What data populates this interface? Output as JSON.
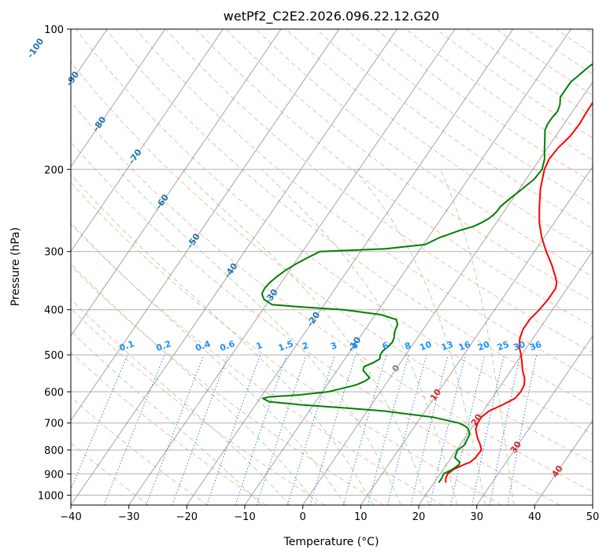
{
  "chart_data": {
    "type": "line",
    "subtype": "skew-t log-p diagram",
    "title": "wetPf2_C2E2.2026.096.22.12.G20",
    "xlabel": "Temperature (°C)",
    "ylabel": "Pressure (hPa)",
    "xlim": [
      -40,
      50
    ],
    "ylim": [
      1050,
      100
    ],
    "y_scale": "log",
    "grid": true,
    "x_ticks": [
      "−40",
      "−30",
      "−20",
      "−10",
      "0",
      "10",
      "20",
      "30",
      "40",
      "50"
    ],
    "y_ticks": [
      "100",
      "200",
      "300",
      "400",
      "500",
      "600",
      "700",
      "800",
      "900",
      "1000"
    ],
    "colors": {
      "temperature": "#ff0000",
      "dewpoint": "#008000",
      "isotherm": "#808080",
      "dry_adiabat": "#f4a582",
      "moist_adiabat": "#8fce8f",
      "mixing_ratio": "#1f77d4",
      "label_blue": "#1f77b4",
      "label_red": "#d62728",
      "label_mix": "#1e90ff"
    },
    "series": [
      {
        "key": "temperature",
        "pressure": [
          940,
          920,
          900,
          880,
          860,
          850,
          830,
          800,
          780,
          760,
          740,
          720,
          700,
          680,
          660,
          640,
          620,
          600,
          580,
          560,
          540,
          520,
          500,
          480,
          460,
          440,
          420,
          400,
          380,
          360,
          350,
          340,
          320,
          300,
          280,
          260,
          240,
          220,
          200,
          190,
          180,
          170,
          160,
          150,
          140,
          130,
          120,
          110,
          100
        ],
        "temperature": [
          22,
          21.5,
          21.3,
          21.8,
          23.0,
          23.8,
          24.2,
          24.3,
          23.5,
          22.5,
          21.6,
          20.8,
          20.5,
          20.4,
          21.0,
          22.6,
          24.0,
          24.2,
          24.0,
          23.2,
          22.0,
          21.0,
          19.9,
          18.6,
          17.7,
          17.2,
          17.2,
          17.7,
          18.0,
          18.0,
          17.5,
          16.6,
          14.5,
          12.0,
          9.6,
          7.4,
          5.5,
          3.6,
          2.0,
          1.6,
          1.8,
          2.5,
          2.7,
          2.5,
          2.4,
          2.2,
          1.7,
          0.8,
          0
        ]
      },
      {
        "key": "dewpoint",
        "pressure": [
          940,
          920,
          900,
          880,
          860,
          850,
          830,
          800,
          780,
          760,
          740,
          720,
          710,
          700,
          680,
          660,
          650,
          640,
          630,
          620,
          615,
          610,
          600,
          590,
          580,
          570,
          560,
          550,
          540,
          530,
          520,
          510,
          500,
          490,
          480,
          470,
          460,
          450,
          440,
          430,
          420,
          410,
          400,
          395,
          390,
          380,
          370,
          360,
          350,
          340,
          330,
          320,
          310,
          300,
          296,
          290,
          280,
          270,
          265,
          260,
          255,
          250,
          245,
          240,
          230,
          220,
          210,
          200,
          190,
          180,
          170,
          165,
          160,
          155,
          150,
          145,
          140,
          130,
          120,
          110,
          100
        ],
        "temperature": [
          20.8,
          20.8,
          20.6,
          21.6,
          22.2,
          22.0,
          20.6,
          20.2,
          20.8,
          20.6,
          20.4,
          19.5,
          18.6,
          17.2,
          12.0,
          3.0,
          -4.0,
          -12.0,
          -18.0,
          -19.5,
          -18.5,
          -14.0,
          -9.0,
          -7.0,
          -5.0,
          -4.0,
          -3.5,
          -4.5,
          -5.5,
          -5.8,
          -4.7,
          -4.0,
          -4.4,
          -4.4,
          -4.0,
          -3.8,
          -4.0,
          -4.5,
          -4.8,
          -5.0,
          -5.8,
          -9.0,
          -16.0,
          -23.0,
          -29.0,
          -31.0,
          -32.0,
          -32.2,
          -32.0,
          -31.5,
          -30.8,
          -29.8,
          -28.5,
          -27.0,
          -16.0,
          -9.7,
          -8.0,
          -5.3,
          -3.5,
          -2.5,
          -1.8,
          -1.4,
          -1.2,
          -1.2,
          -0.4,
          0.5,
          1.4,
          1.6,
          0.8,
          -0.5,
          -1.8,
          -2.5,
          -2.8,
          -2.8,
          -2.6,
          -3.0,
          -3.8,
          -3.8,
          -2.4,
          -0.2,
          0
        ]
      }
    ],
    "isotherm_labels": [
      {
        "text": "-100",
        "t": -100,
        "p": 110
      },
      {
        "text": "-90",
        "t": -90,
        "p": 128
      },
      {
        "text": "-80",
        "t": -80,
        "p": 160
      },
      {
        "text": "-70",
        "t": -70,
        "p": 188
      },
      {
        "text": "-60",
        "t": -60,
        "p": 235
      },
      {
        "text": "-50",
        "t": -50,
        "p": 285
      },
      {
        "text": "-40",
        "t": -40,
        "p": 330
      },
      {
        "text": "-30",
        "t": -30,
        "p": 375
      },
      {
        "text": "-20",
        "t": -20,
        "p": 420
      },
      {
        "text": "-10",
        "t": -10,
        "p": 475
      },
      {
        "text": "0",
        "t": 0,
        "p": 535
      },
      {
        "text": "10",
        "t": 10,
        "p": 610
      },
      {
        "text": "20",
        "t": 20,
        "p": 690
      },
      {
        "text": "30",
        "t": 30,
        "p": 790
      },
      {
        "text": "40",
        "t": 40,
        "p": 890
      }
    ],
    "mixing_ratio_labels": [
      "0.1",
      "0.2",
      "0.4",
      "0.6",
      "1",
      "1.5",
      "2",
      "3",
      "4",
      "6",
      "8",
      "10",
      "13",
      "16",
      "20",
      "25",
      "30",
      "36"
    ],
    "mixing_ratio_values": [
      0.1,
      0.2,
      0.4,
      0.6,
      1,
      1.5,
      2,
      3,
      4,
      6,
      8,
      10,
      13,
      16,
      20,
      25,
      30,
      36
    ],
    "mixing_ratio_label_pressure": 500,
    "dry_adiabats_theta_c": [
      -30,
      -20,
      -10,
      0,
      10,
      20,
      30,
      40,
      50,
      60,
      70,
      80,
      90,
      100,
      110,
      120,
      130,
      140,
      150,
      160,
      170,
      180,
      190,
      200,
      210,
      220,
      230,
      240,
      250
    ],
    "moist_adiabats_start_c": [
      -10,
      -5,
      0,
      5,
      10,
      15,
      20,
      25,
      30,
      35
    ]
  }
}
